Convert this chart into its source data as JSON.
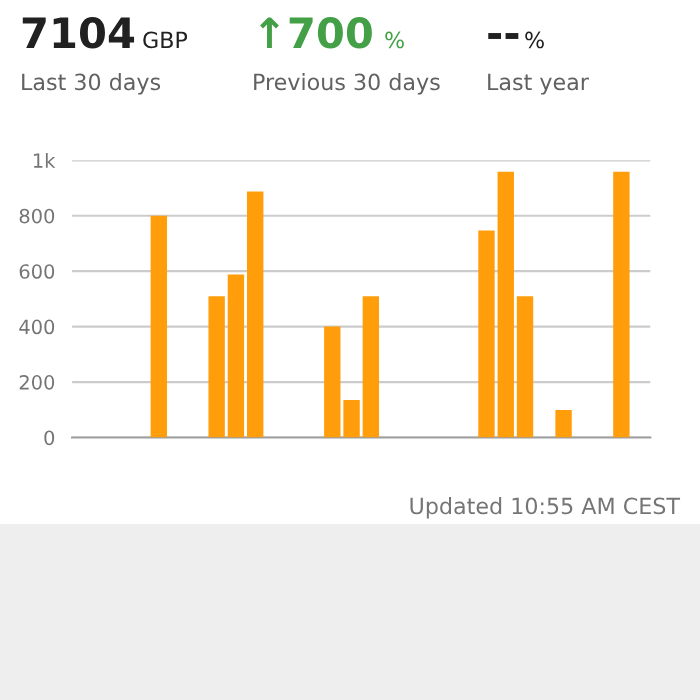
{
  "chart_data": {
    "type": "bar",
    "categories": [
      null,
      null,
      null,
      null,
      null,
      null,
      null,
      null,
      null,
      null,
      null,
      null,
      null,
      null,
      null,
      null,
      null,
      null,
      null,
      null,
      null,
      null,
      null,
      null,
      null,
      null,
      null,
      null,
      null,
      null
    ],
    "values": [
      0,
      0,
      0,
      0,
      800,
      0,
      0,
      510,
      588,
      887,
      0,
      0,
      0,
      400,
      135,
      510,
      0,
      0,
      0,
      0,
      0,
      747,
      959,
      510,
      0,
      99,
      0,
      0,
      959,
      0
    ],
    "color": "#ff9d0a",
    "ylim": [
      0,
      1000
    ],
    "yticks": [
      0,
      200,
      400,
      600,
      800,
      {
        "value": 1000,
        "label": "1k"
      }
    ],
    "grid": "y",
    "annotations": [
      "7104",
      "GBP",
      "Last 30 days",
      "↑700",
      "%",
      "Previous 30 days",
      "--",
      "%",
      "Last year",
      "Updated 10:55 AM CEST"
    ]
  }
}
